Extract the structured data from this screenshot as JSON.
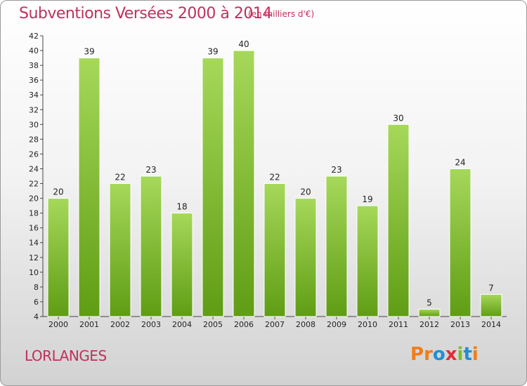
{
  "title": "Subventions Versées 2000 à 2014",
  "subtitle": "(en milliers d'€)",
  "commune": "LORLANGES",
  "logo": {
    "text": "Proxiti",
    "letters": [
      "P",
      "r",
      "o",
      "x",
      "i",
      "t",
      "i"
    ],
    "colors": [
      "#f07d1a",
      "#f07d1a",
      "#1f8fd6",
      "#e02f3a",
      "#7cbf2a",
      "#1f8fd6",
      "#f07d1a"
    ]
  },
  "colors": {
    "accent": "#c0305b",
    "bar_top": "#a6d85a",
    "bar_bottom": "#5f9d14",
    "bar_stroke": "#ffffff"
  },
  "chart_data": {
    "type": "bar",
    "categories": [
      "2000",
      "2001",
      "2002",
      "2003",
      "2004",
      "2005",
      "2006",
      "2007",
      "2008",
      "2009",
      "2010",
      "2011",
      "2012",
      "2013",
      "2014"
    ],
    "values": [
      20,
      39,
      22,
      23,
      18,
      39,
      40,
      22,
      20,
      23,
      19,
      30,
      5,
      24,
      7
    ],
    "ylim": [
      4,
      42
    ],
    "yticks": [
      4,
      6,
      8,
      10,
      12,
      14,
      16,
      18,
      20,
      22,
      24,
      26,
      28,
      30,
      32,
      34,
      36,
      38,
      40,
      42
    ],
    "grid": false,
    "data_labels": true
  }
}
